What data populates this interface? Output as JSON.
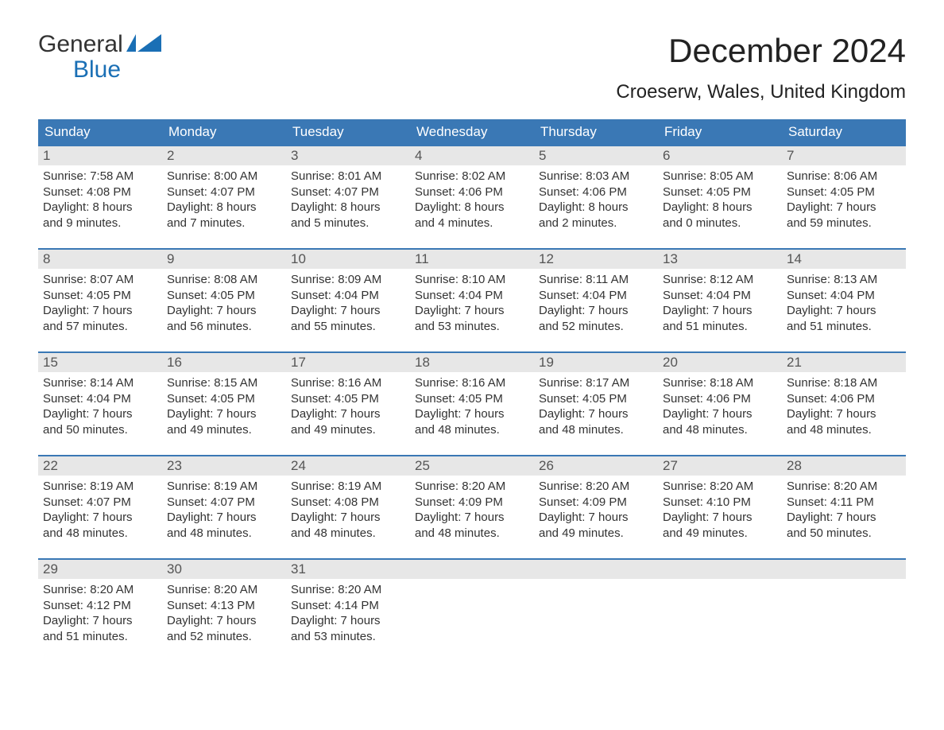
{
  "brand": {
    "text_general": "General",
    "text_blue": "Blue",
    "flag_color": "#1a6fb5",
    "text_color_dark": "#333333"
  },
  "title": {
    "month": "December 2024",
    "location": "Croeserw, Wales, United Kingdom",
    "month_fontsize": 42,
    "location_fontsize": 24
  },
  "colors": {
    "header_bg": "#3a78b5",
    "header_text": "#ffffff",
    "week_border": "#3a78b5",
    "daynum_bg": "#e7e7e7",
    "daynum_text": "#555555",
    "body_text": "#333333",
    "page_bg": "#ffffff"
  },
  "typography": {
    "body_fontsize": 15,
    "header_fontsize": 17,
    "daynum_fontsize": 17,
    "font_family": "Arial"
  },
  "day_headers": [
    "Sunday",
    "Monday",
    "Tuesday",
    "Wednesday",
    "Thursday",
    "Friday",
    "Saturday"
  ],
  "weeks": [
    [
      {
        "n": "1",
        "sunrise": "7:58 AM",
        "sunset": "4:08 PM",
        "daylight": "8 hours and 9 minutes."
      },
      {
        "n": "2",
        "sunrise": "8:00 AM",
        "sunset": "4:07 PM",
        "daylight": "8 hours and 7 minutes."
      },
      {
        "n": "3",
        "sunrise": "8:01 AM",
        "sunset": "4:07 PM",
        "daylight": "8 hours and 5 minutes."
      },
      {
        "n": "4",
        "sunrise": "8:02 AM",
        "sunset": "4:06 PM",
        "daylight": "8 hours and 4 minutes."
      },
      {
        "n": "5",
        "sunrise": "8:03 AM",
        "sunset": "4:06 PM",
        "daylight": "8 hours and 2 minutes."
      },
      {
        "n": "6",
        "sunrise": "8:05 AM",
        "sunset": "4:05 PM",
        "daylight": "8 hours and 0 minutes."
      },
      {
        "n": "7",
        "sunrise": "8:06 AM",
        "sunset": "4:05 PM",
        "daylight": "7 hours and 59 minutes."
      }
    ],
    [
      {
        "n": "8",
        "sunrise": "8:07 AM",
        "sunset": "4:05 PM",
        "daylight": "7 hours and 57 minutes."
      },
      {
        "n": "9",
        "sunrise": "8:08 AM",
        "sunset": "4:05 PM",
        "daylight": "7 hours and 56 minutes."
      },
      {
        "n": "10",
        "sunrise": "8:09 AM",
        "sunset": "4:04 PM",
        "daylight": "7 hours and 55 minutes."
      },
      {
        "n": "11",
        "sunrise": "8:10 AM",
        "sunset": "4:04 PM",
        "daylight": "7 hours and 53 minutes."
      },
      {
        "n": "12",
        "sunrise": "8:11 AM",
        "sunset": "4:04 PM",
        "daylight": "7 hours and 52 minutes."
      },
      {
        "n": "13",
        "sunrise": "8:12 AM",
        "sunset": "4:04 PM",
        "daylight": "7 hours and 51 minutes."
      },
      {
        "n": "14",
        "sunrise": "8:13 AM",
        "sunset": "4:04 PM",
        "daylight": "7 hours and 51 minutes."
      }
    ],
    [
      {
        "n": "15",
        "sunrise": "8:14 AM",
        "sunset": "4:04 PM",
        "daylight": "7 hours and 50 minutes."
      },
      {
        "n": "16",
        "sunrise": "8:15 AM",
        "sunset": "4:05 PM",
        "daylight": "7 hours and 49 minutes."
      },
      {
        "n": "17",
        "sunrise": "8:16 AM",
        "sunset": "4:05 PM",
        "daylight": "7 hours and 49 minutes."
      },
      {
        "n": "18",
        "sunrise": "8:16 AM",
        "sunset": "4:05 PM",
        "daylight": "7 hours and 48 minutes."
      },
      {
        "n": "19",
        "sunrise": "8:17 AM",
        "sunset": "4:05 PM",
        "daylight": "7 hours and 48 minutes."
      },
      {
        "n": "20",
        "sunrise": "8:18 AM",
        "sunset": "4:06 PM",
        "daylight": "7 hours and 48 minutes."
      },
      {
        "n": "21",
        "sunrise": "8:18 AM",
        "sunset": "4:06 PM",
        "daylight": "7 hours and 48 minutes."
      }
    ],
    [
      {
        "n": "22",
        "sunrise": "8:19 AM",
        "sunset": "4:07 PM",
        "daylight": "7 hours and 48 minutes."
      },
      {
        "n": "23",
        "sunrise": "8:19 AM",
        "sunset": "4:07 PM",
        "daylight": "7 hours and 48 minutes."
      },
      {
        "n": "24",
        "sunrise": "8:19 AM",
        "sunset": "4:08 PM",
        "daylight": "7 hours and 48 minutes."
      },
      {
        "n": "25",
        "sunrise": "8:20 AM",
        "sunset": "4:09 PM",
        "daylight": "7 hours and 48 minutes."
      },
      {
        "n": "26",
        "sunrise": "8:20 AM",
        "sunset": "4:09 PM",
        "daylight": "7 hours and 49 minutes."
      },
      {
        "n": "27",
        "sunrise": "8:20 AM",
        "sunset": "4:10 PM",
        "daylight": "7 hours and 49 minutes."
      },
      {
        "n": "28",
        "sunrise": "8:20 AM",
        "sunset": "4:11 PM",
        "daylight": "7 hours and 50 minutes."
      }
    ],
    [
      {
        "n": "29",
        "sunrise": "8:20 AM",
        "sunset": "4:12 PM",
        "daylight": "7 hours and 51 minutes."
      },
      {
        "n": "30",
        "sunrise": "8:20 AM",
        "sunset": "4:13 PM",
        "daylight": "7 hours and 52 minutes."
      },
      {
        "n": "31",
        "sunrise": "8:20 AM",
        "sunset": "4:14 PM",
        "daylight": "7 hours and 53 minutes."
      },
      null,
      null,
      null,
      null
    ]
  ],
  "labels": {
    "sunrise": "Sunrise: ",
    "sunset": "Sunset: ",
    "daylight": "Daylight: "
  }
}
